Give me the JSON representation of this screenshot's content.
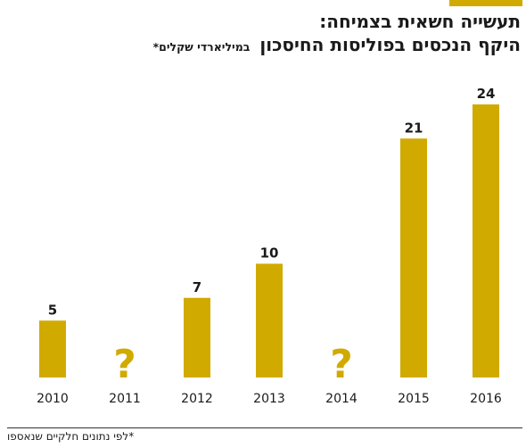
{
  "header": {
    "title": "תעשייה חשאית בצמיחה:",
    "subtitle": "היקף הנכסים בפוליסות החיסכון",
    "unit_note": "במיליארדי שקלים*"
  },
  "footnote": "*לפי נתונים חלקיים שנאספו",
  "colors": {
    "accent": "#d1aa00",
    "text": "#1a1a1a"
  },
  "chart_data": {
    "type": "bar",
    "title": "היקף הנכסים בפוליסות החיסכון",
    "categories": [
      "2010",
      "2011",
      "2012",
      "2013",
      "2014",
      "2015",
      "2016"
    ],
    "values": [
      5,
      null,
      7,
      10,
      null,
      21,
      24
    ],
    "value_labels": [
      "5",
      "?",
      "7",
      "10",
      "?",
      "21",
      "24"
    ],
    "ylim": [
      0,
      24
    ],
    "grid": false,
    "legend": "none"
  }
}
